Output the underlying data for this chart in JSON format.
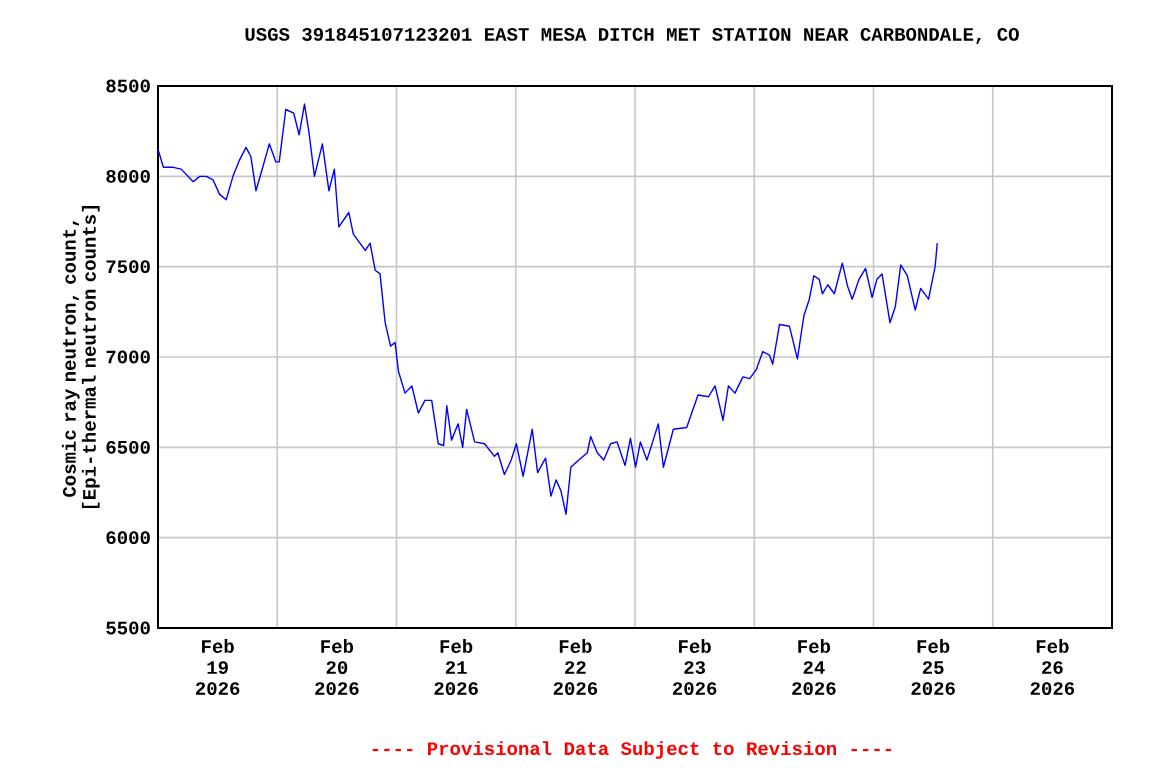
{
  "chart_data": {
    "type": "line",
    "title": "USGS 391845107123201 EAST MESA DITCH MET STATION NEAR CARBONDALE, CO",
    "ylabel": "Cosmic ray neutron, count, [Epi-thermal neutron counts]",
    "annotations": [
      "---- Provisional Data Subject to Revision ----"
    ],
    "xlim": [
      "2026-02-19T00:00",
      "2026-02-27T00:00"
    ],
    "xticks": [
      {
        "value": "2026-02-20T00:00",
        "label": null
      },
      {
        "value": "2026-02-21T00:00",
        "label": null
      },
      {
        "value": "2026-02-22T00:00",
        "label": null
      },
      {
        "value": "2026-02-23T00:00",
        "label": null
      },
      {
        "value": "2026-02-24T00:00",
        "label": null
      },
      {
        "value": "2026-02-25T00:00",
        "label": null
      },
      {
        "value": "2026-02-26T00:00",
        "label": null
      },
      {
        "value": "2026-02-19T12:00",
        "label": "Feb 19 2026"
      },
      {
        "value": "2026-02-20T12:00",
        "label": "Feb 20 2026"
      },
      {
        "value": "2026-02-21T12:00",
        "label": "Feb 21 2026"
      },
      {
        "value": "2026-02-22T12:00",
        "label": "Feb 22 2026"
      },
      {
        "value": "2026-02-23T12:00",
        "label": "Feb 23 2026"
      },
      {
        "value": "2026-02-24T12:00",
        "label": "Feb 24 2026"
      },
      {
        "value": "2026-02-25T12:00",
        "label": "Feb 25 2026"
      },
      {
        "value": "2026-02-26T12:00",
        "label": "Feb 26 2026"
      }
    ],
    "ylim": [
      5500,
      8500
    ],
    "yticks": [
      5500,
      6000,
      6500,
      7000,
      7500,
      8000,
      8500
    ],
    "grid": true,
    "marker": "none",
    "line_style": "solid",
    "series": [
      {
        "color": "#0000ff",
        "x": [
          "2026-02-19T00:00",
          "2026-02-19T01:05",
          "2026-02-19T03:05",
          "2026-02-19T04:40",
          "2026-02-19T07:05",
          "2026-02-19T08:24",
          "2026-02-19T09:43",
          "2026-02-19T11:05",
          "2026-02-19T12:24",
          "2026-02-19T13:43",
          "2026-02-19T15:05",
          "2026-02-19T16:24",
          "2026-02-19T17:43",
          "2026-02-19T18:41",
          "2026-02-19T19:43",
          "2026-02-19T21:05",
          "2026-02-19T22:24",
          "2026-02-19T23:43",
          "2026-02-20T00:24",
          "2026-02-20T01:43",
          "2026-02-20T03:19",
          "2026-02-20T04:24",
          "2026-02-20T05:29",
          "2026-02-20T06:24",
          "2026-02-20T07:29",
          "2026-02-20T09:05",
          "2026-02-20T10:24",
          "2026-02-20T11:29",
          "2026-02-20T12:24",
          "2026-02-20T14:24",
          "2026-02-20T15:19",
          "2026-02-20T17:43",
          "2026-02-20T18:41",
          "2026-02-20T19:43",
          "2026-02-20T20:41",
          "2026-02-20T21:43",
          "2026-02-20T22:48",
          "2026-02-20T23:43",
          "2026-02-21T00:24",
          "2026-02-21T01:43",
          "2026-02-21T03:05",
          "2026-02-21T04:24",
          "2026-02-21T05:43",
          "2026-02-21T07:05",
          "2026-02-21T08:24",
          "2026-02-21T09:29",
          "2026-02-21T10:07",
          "2026-02-21T11:05",
          "2026-02-21T12:24",
          "2026-02-21T13:19",
          "2026-02-21T14:07",
          "2026-02-21T15:43",
          "2026-02-21T17:43",
          "2026-02-21T19:43",
          "2026-02-21T20:24",
          "2026-02-21T21:43",
          "2026-02-21T23:05",
          "2026-02-22T00:07",
          "2026-02-22T01:29",
          "2026-02-22T03:19",
          "2026-02-22T04:24",
          "2026-02-22T06:00",
          "2026-02-22T07:05",
          "2026-02-22T08:07",
          "2026-02-22T09:05",
          "2026-02-22T10:07",
          "2026-02-22T11:05",
          "2026-02-22T12:41",
          "2026-02-22T14:24",
          "2026-02-22T15:05",
          "2026-02-22T16:24",
          "2026-02-22T17:43",
          "2026-02-22T19:05",
          "2026-02-22T20:24",
          "2026-02-22T22:00",
          "2026-02-22T23:05",
          "2026-02-23T00:07",
          "2026-02-23T01:05",
          "2026-02-23T02:24",
          "2026-02-23T04:41",
          "2026-02-23T05:43",
          "2026-02-23T07:43",
          "2026-02-23T10:24",
          "2026-02-23T12:41",
          "2026-02-23T14:48",
          "2026-02-23T16:07",
          "2026-02-23T17:43",
          "2026-02-23T18:48",
          "2026-02-23T20:07",
          "2026-02-23T21:43",
          "2026-02-23T23:05",
          "2026-02-24T00:24",
          "2026-02-24T01:43",
          "2026-02-24T03:05",
          "2026-02-24T03:43",
          "2026-02-24T05:05",
          "2026-02-24T07:05",
          "2026-02-24T08:41",
          "2026-02-24T10:00",
          "2026-02-24T11:05",
          "2026-02-24T12:00",
          "2026-02-24T13:05",
          "2026-02-24T13:43",
          "2026-02-24T14:48",
          "2026-02-24T16:07",
          "2026-02-24T17:43",
          "2026-02-24T18:48",
          "2026-02-24T19:43",
          "2026-02-24T21:05",
          "2026-02-24T22:24",
          "2026-02-24T23:43",
          "2026-02-25T00:41",
          "2026-02-25T01:43",
          "2026-02-25T03:19",
          "2026-02-25T04:24",
          "2026-02-25T05:29",
          "2026-02-25T06:48",
          "2026-02-25T08:24",
          "2026-02-25T09:29",
          "2026-02-25T11:05",
          "2026-02-25T12:24",
          "2026-02-25T12:50"
        ],
        "values": [
          8150,
          8050,
          8050,
          8040,
          7970,
          8000,
          8000,
          7980,
          7900,
          7870,
          8000,
          8090,
          8160,
          8110,
          7920,
          8050,
          8180,
          8080,
          8080,
          8370,
          8350,
          8230,
          8400,
          8240,
          8000,
          8180,
          7920,
          8040,
          7720,
          7800,
          7680,
          7590,
          7630,
          7480,
          7460,
          7190,
          7060,
          7080,
          6920,
          6800,
          6840,
          6690,
          6760,
          6760,
          6520,
          6510,
          6730,
          6540,
          6630,
          6500,
          6710,
          6530,
          6520,
          6450,
          6470,
          6350,
          6430,
          6520,
          6340,
          6600,
          6360,
          6440,
          6230,
          6320,
          6260,
          6130,
          6390,
          6430,
          6470,
          6560,
          6470,
          6430,
          6520,
          6530,
          6400,
          6550,
          6390,
          6530,
          6430,
          6630,
          6390,
          6600,
          6610,
          6790,
          6780,
          6840,
          6650,
          6840,
          6800,
          6890,
          6880,
          6930,
          7030,
          7010,
          6960,
          7180,
          7170,
          6990,
          7230,
          7320,
          7450,
          7430,
          7350,
          7400,
          7350,
          7520,
          7390,
          7320,
          7430,
          7490,
          7330,
          7430,
          7460,
          7190,
          7280,
          7510,
          7450,
          7260,
          7380,
          7320,
          7500,
          7630
        ]
      }
    ]
  }
}
